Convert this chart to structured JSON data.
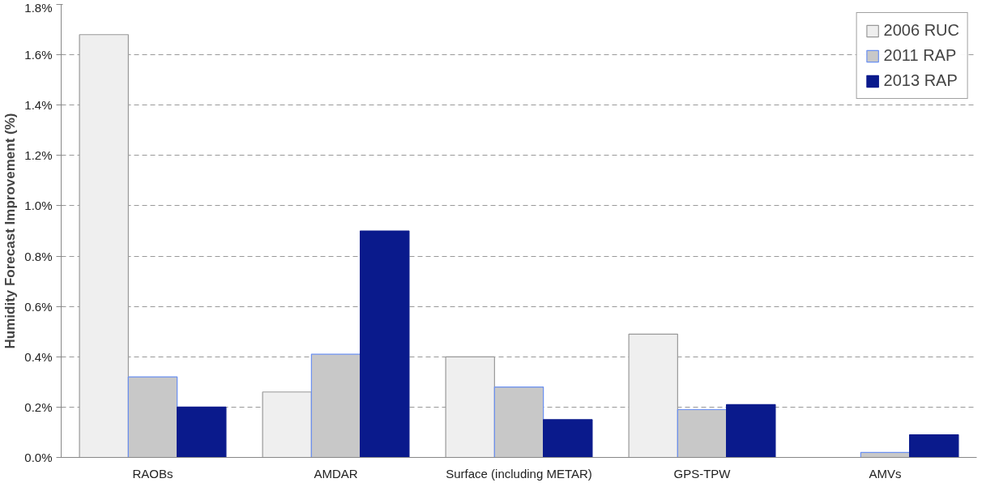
{
  "chart_data": {
    "type": "bar",
    "ylabel": "Humidity Forecast Improvement (%)",
    "categories": [
      "RAOBs",
      "AMDAR",
      "Surface (including METAR)",
      "GPS-TPW",
      "AMVs"
    ],
    "series": [
      {
        "name": "2006 RUC",
        "color": "#efefef",
        "values": [
          1.68,
          0.26,
          0.4,
          0.49,
          null
        ]
      },
      {
        "name": "2011 RAP",
        "color": "#c8c8c8",
        "values": [
          0.32,
          0.41,
          0.28,
          0.19,
          0.02
        ]
      },
      {
        "name": "2013 RAP",
        "color": "#0a1a8c",
        "values": [
          0.2,
          0.9,
          0.15,
          0.21,
          0.09
        ]
      }
    ],
    "ylim": [
      0,
      1.8
    ],
    "yticks": [
      {
        "value": 0,
        "label": "0.0%"
      },
      {
        "value": 0.2,
        "label": "0.2%"
      },
      {
        "value": 0.4,
        "label": "0.4%"
      },
      {
        "value": 0.6,
        "label": "0.6%"
      },
      {
        "value": 0.8,
        "label": "0.8%"
      },
      {
        "value": 1.0,
        "label": "1.0%"
      },
      {
        "value": 1.2,
        "label": "1.2%"
      },
      {
        "value": 1.4,
        "label": "1.4%"
      },
      {
        "value": 1.6,
        "label": "1.6%"
      },
      {
        "value": 1.8,
        "label": "1.8%"
      }
    ],
    "grid": "y",
    "legend": "top right"
  }
}
